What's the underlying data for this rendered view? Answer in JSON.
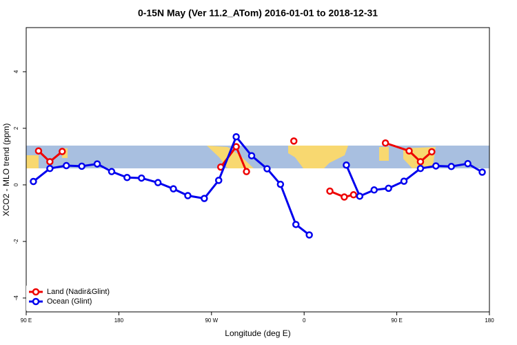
{
  "chart_data": {
    "type": "line",
    "title": "0-15N May (Ver 11.2_ATom)   2016-01-01 to 2018-12-31",
    "xlabel": "Longitude (deg E)",
    "ylabel": "XCO2 - MLO trend (ppm)",
    "xlim": [
      90,
      540
    ],
    "xticks": [
      {
        "value": 90,
        "label": "90 E"
      },
      180,
      {
        "value": 270,
        "label": "90 W"
      },
      {
        "value": 360,
        "label": "0"
      },
      {
        "value": 450,
        "label": "90 E"
      },
      {
        "value": 540,
        "label": "180"
      }
    ],
    "ylim": [
      -4.49,
      5.56
    ],
    "yticks": [
      -4,
      -2,
      0,
      2,
      4
    ],
    "legend": "bottom-left",
    "series": [
      {
        "name": "Land (Nadir&Glint)",
        "color": "#ee0000",
        "x": [
          102,
          113,
          125,
          null,
          279,
          294,
          304,
          null,
          350,
          null,
          385,
          399,
          408,
          null,
          439,
          462,
          473,
          484
        ],
        "values": [
          1.2,
          0.82,
          1.18,
          null,
          0.63,
          1.35,
          0.47,
          null,
          1.55,
          null,
          -0.22,
          -0.43,
          -0.35,
          null,
          1.48,
          1.2,
          0.82,
          1.17
        ]
      },
      {
        "name": "Ocean (Glint)",
        "color": "#0000ee",
        "x": [
          97,
          113,
          129,
          144,
          159,
          173,
          188,
          202,
          218,
          233,
          247,
          263,
          277,
          294,
          309,
          324,
          337,
          352,
          365,
          null,
          401,
          414,
          428,
          442,
          457,
          473,
          488,
          503,
          519,
          533
        ],
        "values": [
          0.12,
          0.58,
          0.68,
          0.66,
          0.74,
          0.47,
          0.26,
          0.24,
          0.08,
          -0.14,
          -0.38,
          -0.48,
          0.16,
          1.7,
          1.03,
          0.57,
          0.02,
          -1.4,
          -1.77,
          null,
          0.7,
          -0.4,
          -0.18,
          -0.12,
          0.13,
          0.58,
          0.67,
          0.65,
          0.75,
          0.45
        ]
      }
    ]
  }
}
